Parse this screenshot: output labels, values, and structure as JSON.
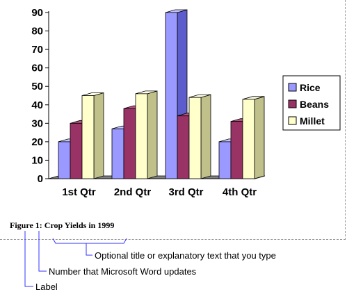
{
  "chart_data": {
    "type": "bar",
    "categories": [
      "1st Qtr",
      "2nd Qtr",
      "3rd Qtr",
      "4th Qtr"
    ],
    "series": [
      {
        "name": "Rice",
        "values": [
          20,
          27,
          90,
          20
        ]
      },
      {
        "name": "Beans",
        "values": [
          30,
          38,
          34,
          31
        ]
      },
      {
        "name": "Millet",
        "values": [
          45,
          46,
          44,
          43
        ]
      }
    ],
    "yticks": [
      "0",
      "10",
      "20",
      "30",
      "40",
      "50",
      "60",
      "70",
      "80",
      "90"
    ],
    "ylim": [
      0,
      90
    ],
    "legend_position": "right",
    "grid": false
  },
  "caption": {
    "label": "Figure",
    "number": "1",
    "separator": ":",
    "title": "Crop Yields in 1999"
  },
  "callouts": {
    "title_note": "Optional title or explanatory text that you type",
    "number_note": "Number that Microsoft Word updates",
    "label_note": "Label"
  },
  "colors": {
    "series": [
      "#9999ff",
      "#993366",
      "#ffffcc"
    ],
    "series_side": [
      "#5c5ccc",
      "#6b1f44",
      "#c0c08a"
    ],
    "series_top": [
      "#c4c4ff",
      "#b8557f",
      "#ffffe8"
    ],
    "floor_side": "#808080",
    "callout": "#3333ff"
  }
}
